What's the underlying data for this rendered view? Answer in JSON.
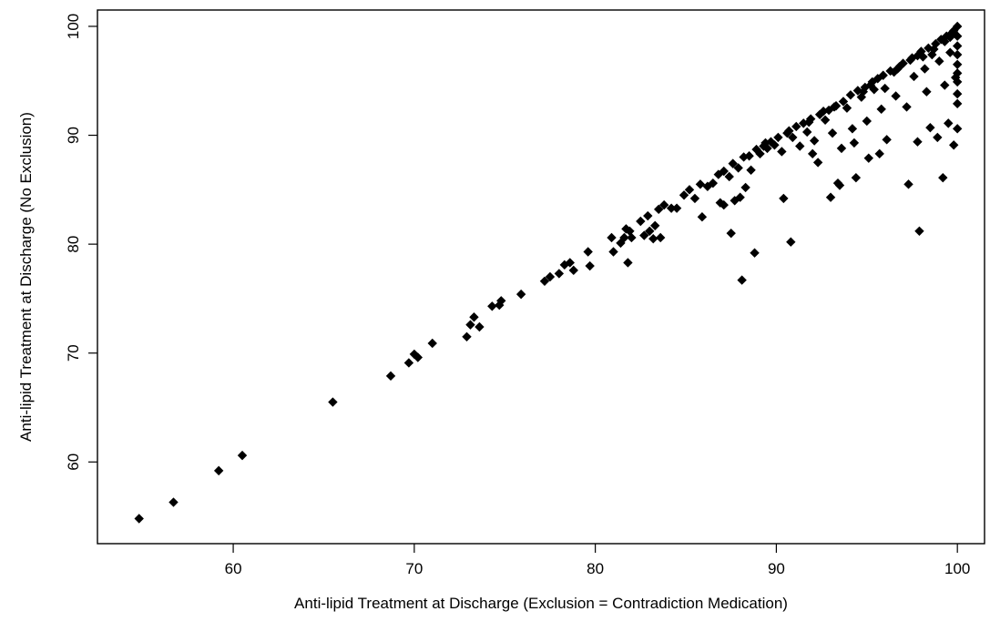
{
  "chart_data": {
    "type": "scatter",
    "xlabel": "Anti-lipid Treatment at Discharge (Exclusion = Contradiction Medication)",
    "ylabel": "Anti-lipid Treatment at Discharge (No Exclusion)",
    "xlim": [
      52.5,
      101.5
    ],
    "ylim": [
      52.5,
      101.5
    ],
    "x_ticks": [
      60,
      70,
      80,
      90,
      100
    ],
    "y_ticks": [
      60,
      70,
      80,
      90,
      100
    ],
    "x_tick_labels": [
      "60",
      "70",
      "80",
      "90",
      "100"
    ],
    "y_tick_labels": [
      "60",
      "70",
      "80",
      "90",
      "100"
    ],
    "grid": false,
    "legend": null,
    "marker_color": "#000000",
    "points": [
      [
        54.8,
        54.8
      ],
      [
        56.7,
        56.3
      ],
      [
        59.2,
        59.2
      ],
      [
        60.5,
        60.6
      ],
      [
        65.5,
        65.5
      ],
      [
        68.7,
        67.9
      ],
      [
        69.7,
        69.1
      ],
      [
        70.0,
        69.9
      ],
      [
        70.2,
        69.6
      ],
      [
        71.0,
        70.9
      ],
      [
        72.9,
        71.5
      ],
      [
        73.1,
        72.6
      ],
      [
        73.3,
        73.3
      ],
      [
        73.6,
        72.4
      ],
      [
        74.3,
        74.3
      ],
      [
        74.7,
        74.4
      ],
      [
        74.8,
        74.8
      ],
      [
        75.9,
        75.4
      ],
      [
        77.2,
        76.6
      ],
      [
        77.5,
        77.0
      ],
      [
        78.0,
        77.3
      ],
      [
        78.3,
        78.1
      ],
      [
        78.6,
        78.3
      ],
      [
        78.8,
        77.6
      ],
      [
        79.6,
        79.3
      ],
      [
        79.7,
        78.0
      ],
      [
        80.9,
        80.6
      ],
      [
        81.0,
        79.3
      ],
      [
        81.4,
        80.1
      ],
      [
        81.6,
        80.6
      ],
      [
        81.7,
        81.4
      ],
      [
        81.9,
        81.2
      ],
      [
        82.0,
        80.6
      ],
      [
        81.8,
        78.3
      ],
      [
        82.5,
        82.1
      ],
      [
        82.7,
        80.8
      ],
      [
        82.9,
        82.6
      ],
      [
        83.0,
        81.2
      ],
      [
        83.2,
        80.5
      ],
      [
        83.3,
        81.7
      ],
      [
        83.5,
        83.2
      ],
      [
        83.6,
        80.6
      ],
      [
        83.8,
        83.6
      ],
      [
        84.2,
        83.3
      ],
      [
        84.5,
        83.3
      ],
      [
        84.9,
        84.5
      ],
      [
        85.2,
        85.0
      ],
      [
        85.5,
        84.2
      ],
      [
        85.8,
        85.5
      ],
      [
        85.9,
        82.5
      ],
      [
        86.2,
        85.3
      ],
      [
        86.5,
        85.6
      ],
      [
        86.8,
        86.4
      ],
      [
        86.9,
        83.8
      ],
      [
        87.1,
        86.7
      ],
      [
        87.1,
        83.6
      ],
      [
        87.4,
        86.2
      ],
      [
        87.5,
        81.0
      ],
      [
        87.6,
        87.4
      ],
      [
        87.7,
        84.0
      ],
      [
        87.9,
        87.0
      ],
      [
        88.0,
        84.3
      ],
      [
        88.1,
        76.7
      ],
      [
        88.2,
        88.0
      ],
      [
        88.3,
        85.2
      ],
      [
        88.5,
        88.1
      ],
      [
        88.6,
        86.8
      ],
      [
        88.8,
        79.2
      ],
      [
        88.9,
        88.7
      ],
      [
        89.1,
        88.3
      ],
      [
        89.3,
        89.0
      ],
      [
        89.5,
        88.8
      ],
      [
        89.7,
        89.4
      ],
      [
        89.9,
        89.1
      ],
      [
        90.1,
        89.8
      ],
      [
        90.3,
        88.5
      ],
      [
        90.4,
        84.2
      ],
      [
        90.6,
        90.2
      ],
      [
        90.8,
        80.2
      ],
      [
        90.9,
        89.8
      ],
      [
        91.1,
        90.8
      ],
      [
        91.3,
        89.0
      ],
      [
        91.5,
        91.1
      ],
      [
        91.7,
        90.3
      ],
      [
        91.9,
        91.5
      ],
      [
        92.0,
        88.3
      ],
      [
        92.1,
        89.5
      ],
      [
        92.3,
        87.5
      ],
      [
        92.4,
        91.9
      ],
      [
        92.7,
        91.4
      ],
      [
        92.9,
        92.3
      ],
      [
        93.0,
        84.3
      ],
      [
        93.1,
        90.2
      ],
      [
        93.2,
        92.6
      ],
      [
        93.4,
        85.6
      ],
      [
        93.5,
        85.4
      ],
      [
        93.6,
        88.8
      ],
      [
        93.7,
        93.1
      ],
      [
        93.9,
        92.5
      ],
      [
        94.1,
        93.7
      ],
      [
        94.2,
        90.6
      ],
      [
        94.3,
        89.3
      ],
      [
        94.4,
        86.1
      ],
      [
        94.5,
        94.1
      ],
      [
        94.7,
        93.5
      ],
      [
        94.9,
        94.4
      ],
      [
        95.0,
        91.3
      ],
      [
        95.1,
        87.9
      ],
      [
        95.2,
        94.6
      ],
      [
        95.4,
        94.2
      ],
      [
        95.6,
        95.2
      ],
      [
        95.7,
        88.3
      ],
      [
        95.8,
        92.4
      ],
      [
        95.9,
        95.5
      ],
      [
        96.0,
        94.3
      ],
      [
        96.1,
        89.6
      ],
      [
        96.3,
        95.9
      ],
      [
        96.5,
        95.8
      ],
      [
        96.6,
        93.6
      ],
      [
        96.8,
        96.3
      ],
      [
        97.0,
        96.6
      ],
      [
        97.2,
        92.6
      ],
      [
        97.3,
        85.5
      ],
      [
        97.4,
        96.9
      ],
      [
        97.6,
        95.4
      ],
      [
        97.8,
        97.3
      ],
      [
        97.9,
        81.2
      ],
      [
        97.8,
        89.4
      ],
      [
        98.0,
        97.7
      ],
      [
        98.2,
        96.1
      ],
      [
        98.3,
        94.0
      ],
      [
        98.4,
        98.0
      ],
      [
        98.5,
        90.7
      ],
      [
        98.6,
        97.4
      ],
      [
        98.8,
        98.4
      ],
      [
        98.9,
        89.8
      ],
      [
        99.0,
        96.8
      ],
      [
        99.1,
        98.8
      ],
      [
        99.2,
        86.1
      ],
      [
        99.3,
        94.6
      ],
      [
        99.4,
        99.1
      ],
      [
        99.5,
        91.1
      ],
      [
        99.6,
        97.6
      ],
      [
        99.7,
        99.4
      ],
      [
        99.8,
        89.1
      ],
      [
        99.9,
        95.3
      ],
      [
        100.0,
        100.0
      ],
      [
        100.0,
        99.1
      ],
      [
        100.0,
        98.2
      ],
      [
        100.0,
        97.4
      ],
      [
        100.0,
        96.5
      ],
      [
        100.0,
        95.7
      ],
      [
        100.0,
        94.9
      ],
      [
        100.0,
        93.8
      ],
      [
        100.0,
        92.9
      ],
      [
        100.0,
        90.6
      ],
      [
        95.3,
        94.9
      ],
      [
        96.7,
        96.1
      ],
      [
        97.5,
        97.1
      ],
      [
        98.1,
        97.2
      ],
      [
        98.7,
        97.9
      ],
      [
        99.3,
        98.6
      ],
      [
        99.6,
        99.0
      ],
      [
        99.8,
        99.6
      ],
      [
        94.8,
        94.0
      ],
      [
        93.3,
        92.7
      ],
      [
        92.6,
        92.2
      ],
      [
        91.8,
        91.2
      ],
      [
        90.7,
        90.4
      ],
      [
        89.4,
        89.3
      ]
    ]
  }
}
